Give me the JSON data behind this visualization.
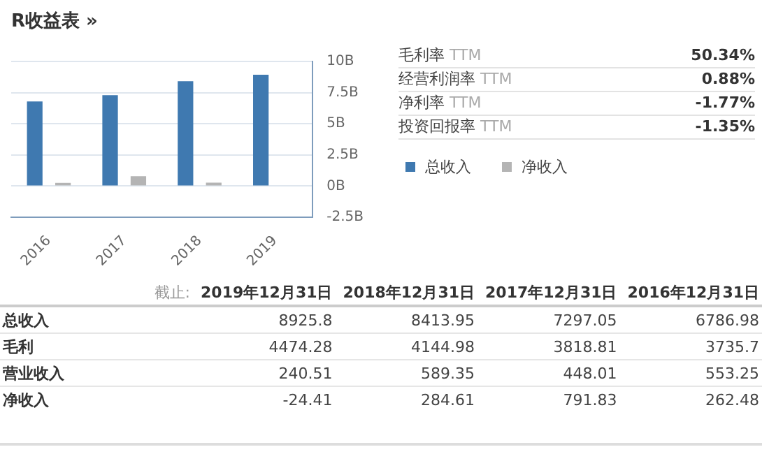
{
  "chart_data": [
    {
      "type": "bar",
      "title": "R收益表 »",
      "categories": [
        "2016",
        "2017",
        "2018",
        "2019"
      ],
      "series": [
        {
          "name": "总收入",
          "color": "#3f79b0",
          "values": [
            6.79,
            7.3,
            8.41,
            8.93
          ]
        },
        {
          "name": "净收入",
          "color": "#b4b4b4",
          "values": [
            0.26,
            0.79,
            0.28,
            null
          ]
        }
      ],
      "ylim": [
        -2.5,
        10
      ],
      "yticks": [
        {
          "value": -2.5,
          "label": "-2.5B"
        },
        {
          "value": 0,
          "label": "0B"
        },
        {
          "value": 2.5,
          "label": "2.5B"
        },
        {
          "value": 5,
          "label": "5B"
        },
        {
          "value": 7.5,
          "label": "7.5B"
        },
        {
          "value": 10,
          "label": "10B"
        }
      ],
      "grid": "y",
      "legend": "right"
    },
    {
      "type": "other",
      "categories": [
        "毛利率 TTM",
        "经营利润率 TTM",
        "净利率 TTM",
        "投资回报率 TTM"
      ],
      "values": [
        50.34,
        0.88,
        -1.77,
        -1.35
      ],
      "value_labels": [
        "50.34%",
        "0.88%",
        "-1.77%",
        "-1.35%"
      ],
      "data_labels": true
    },
    {
      "type": "other",
      "data_labels": true,
      "annotations": [
        "截止:"
      ],
      "categories": [
        "2019年12月31日",
        "2018年12月31日",
        "2017年12月31日",
        "2016年12月31日"
      ],
      "series": [
        {
          "name": "总收入",
          "values": [
            8925.8,
            8413.95,
            7297.05,
            6786.98
          ]
        },
        {
          "name": "毛利",
          "values": [
            4474.28,
            4144.98,
            3818.81,
            3735.7
          ]
        },
        {
          "name": "营业收入",
          "values": [
            240.51,
            589.35,
            448.01,
            553.25
          ]
        },
        {
          "name": "净收入",
          "values": [
            -24.41,
            284.61,
            791.83,
            262.48
          ]
        }
      ]
    }
  ]
}
